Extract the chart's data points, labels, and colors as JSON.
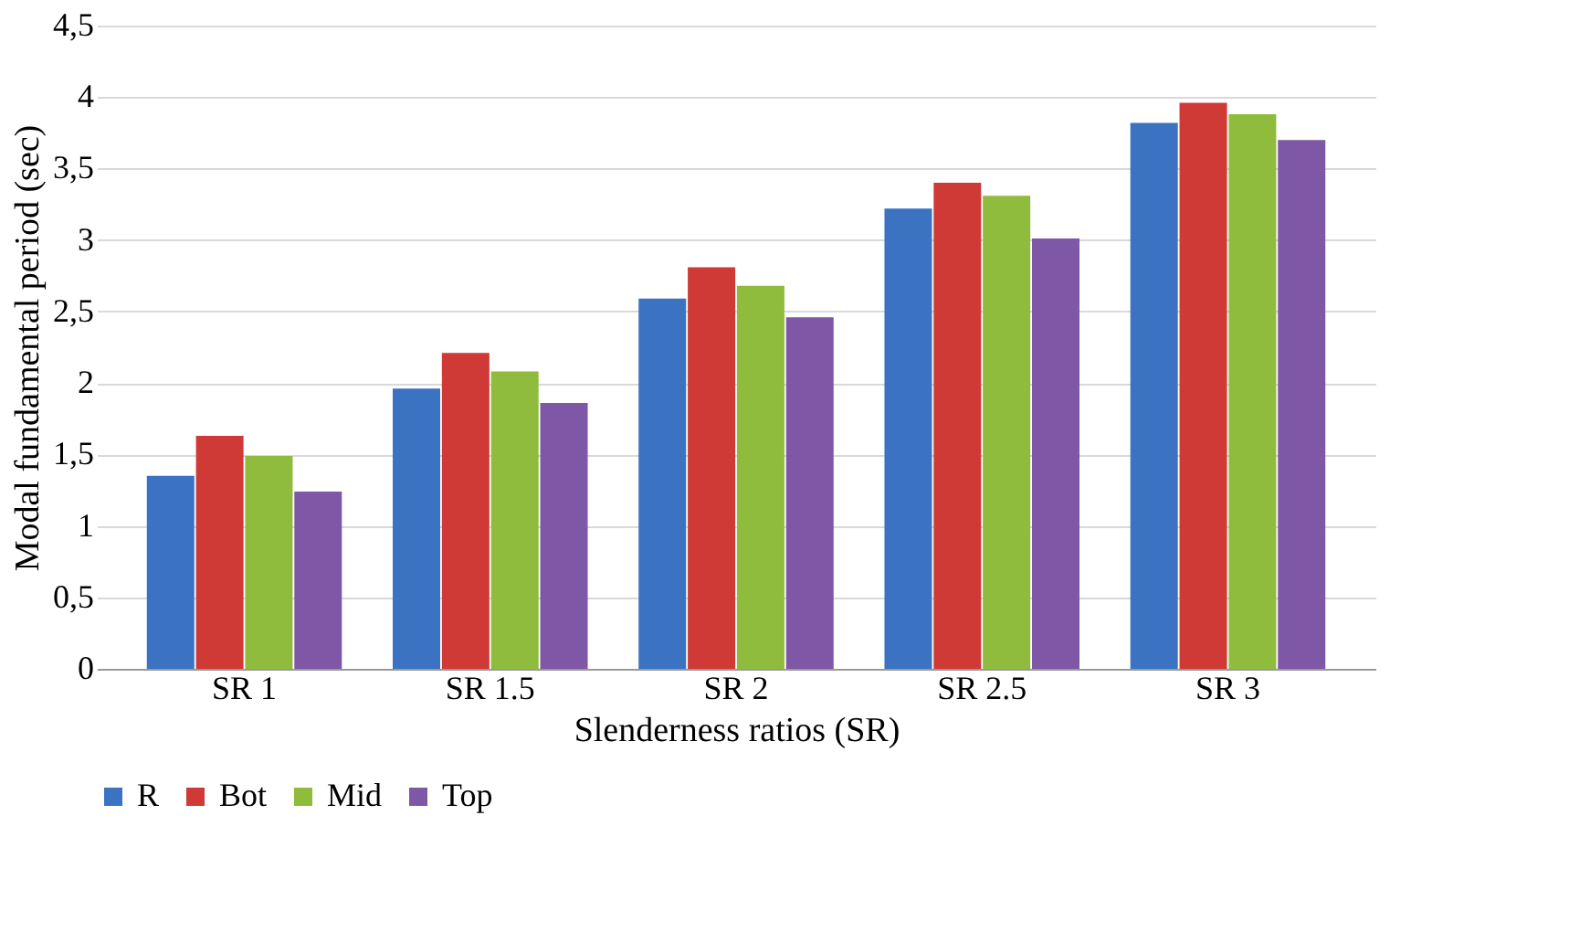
{
  "chart_data": {
    "type": "bar",
    "xlabel": "Slenderness ratios (SR)",
    "ylabel": "Modal fundamental period (sec)",
    "categories": [
      "SR 1",
      "SR 1.5",
      "SR 2",
      "SR 2.5",
      "SR 3"
    ],
    "series": [
      {
        "name": "R",
        "color": "#3b73c2",
        "values": [
          1.35,
          1.96,
          2.59,
          3.22,
          3.82
        ]
      },
      {
        "name": "Bot",
        "color": "#cf3a36",
        "values": [
          1.63,
          2.21,
          2.81,
          3.4,
          3.96
        ]
      },
      {
        "name": "Mid",
        "color": "#8fbc3c",
        "values": [
          1.49,
          2.08,
          2.68,
          3.31,
          3.88
        ]
      },
      {
        "name": "Top",
        "color": "#7e58a6",
        "values": [
          1.24,
          1.86,
          2.46,
          3.01,
          3.7
        ]
      }
    ],
    "ylim": [
      0,
      4.5
    ],
    "yticks": [
      0,
      {
        "value": 0.5,
        "label": "0,5"
      },
      1,
      {
        "value": 1.5,
        "label": "1,5"
      },
      2,
      {
        "value": 2.5,
        "label": "2,5"
      },
      3,
      {
        "value": 3.5,
        "label": "3,5"
      },
      4,
      {
        "value": 4.5,
        "label": "4,5"
      }
    ],
    "grid": "y",
    "legend": "bottom"
  }
}
